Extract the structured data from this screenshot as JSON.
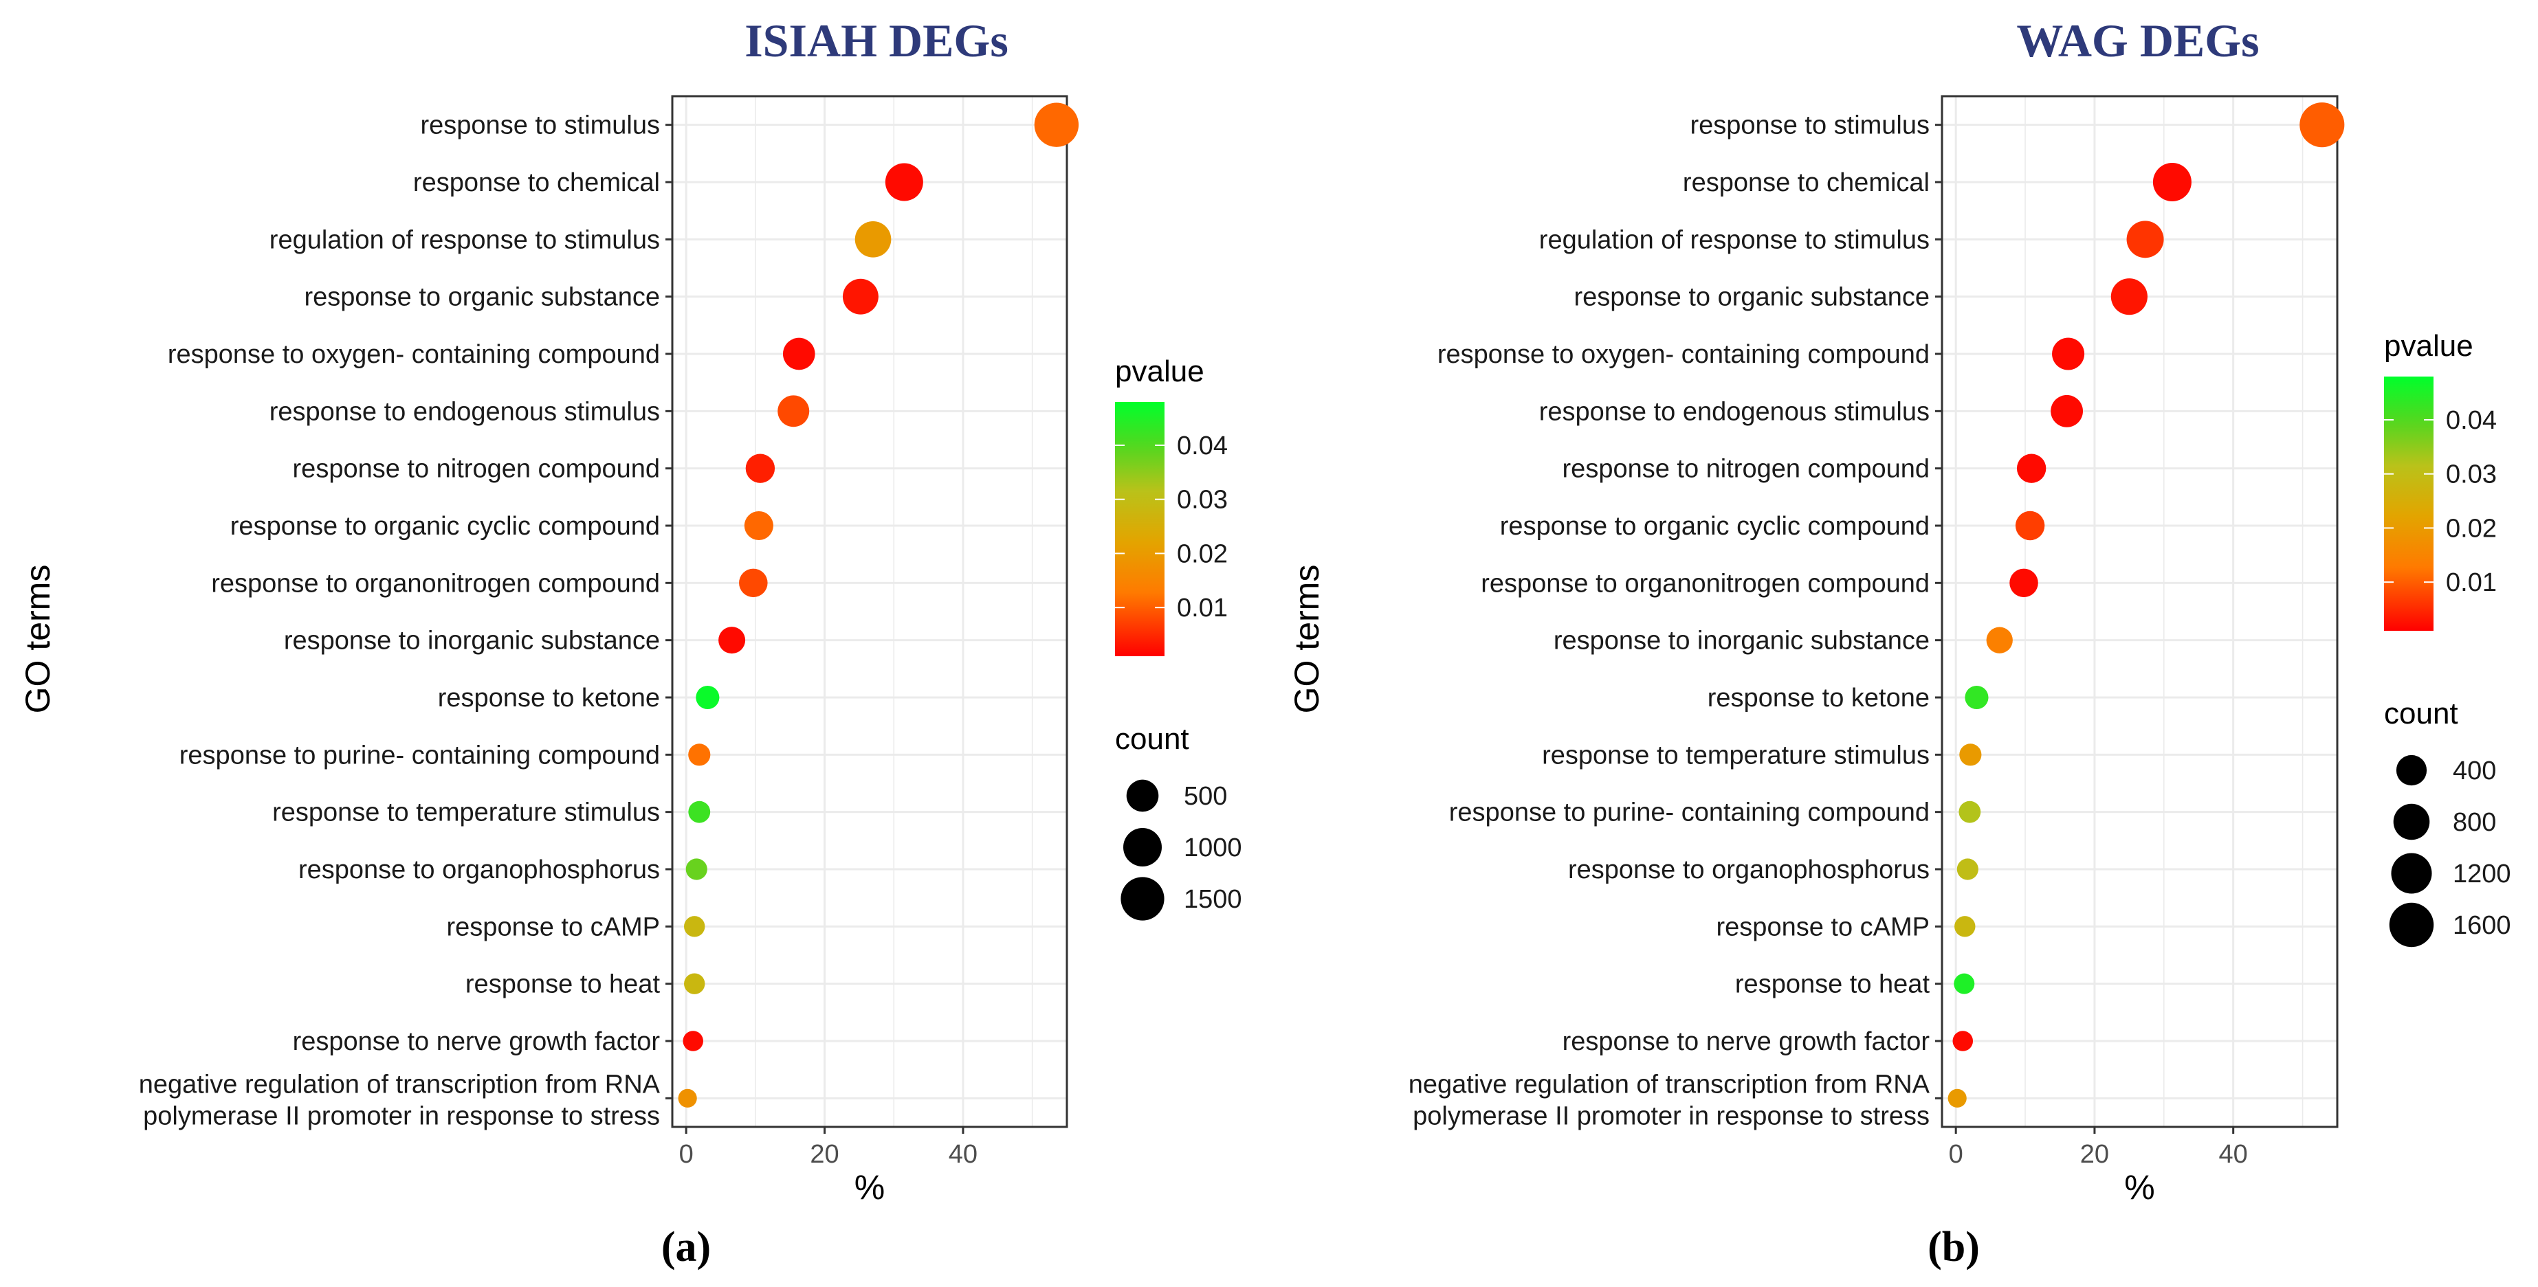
{
  "chart_data": [
    {
      "type": "scatter",
      "title": "ISIAH DEGs",
      "panel_label": "(a)",
      "xlabel": "%",
      "ylabel": "GO terms",
      "xlim": [
        -2,
        55
      ],
      "xticks": [
        0,
        20,
        40
      ],
      "categories": [
        "response to stimulus",
        "response to chemical",
        "regulation of response to stimulus",
        "response to organic substance",
        "response to oxygen- containing compound",
        "response to endogenous stimulus",
        "response to nitrogen compound",
        "response to organic cyclic compound",
        "response to organonitrogen compound",
        "response to inorganic substance",
        "response to ketone",
        "response to purine- containing compound",
        "response to temperature stimulus",
        "response to organophosphorus",
        "response to cAMP",
        "response to heat",
        "response to nerve growth factor",
        "negative regulation of transcription from RNA\npolymerase II promoter in response to stress"
      ],
      "x": [
        53.5,
        31.5,
        27.0,
        25.2,
        16.3,
        15.5,
        10.7,
        10.5,
        9.7,
        6.6,
        3.1,
        1.9,
        1.9,
        1.5,
        1.2,
        1.2,
        1.0,
        0.2
      ],
      "pvalue": [
        0.011,
        0.002,
        0.02,
        0.003,
        0.002,
        0.008,
        0.004,
        0.011,
        0.008,
        0.002,
        0.047,
        0.012,
        0.042,
        0.038,
        0.028,
        0.028,
        0.002,
        0.018
      ],
      "count": [
        1590,
        940,
        800,
        760,
        500,
        470,
        330,
        320,
        300,
        220,
        100,
        65,
        60,
        50,
        40,
        40,
        30,
        10
      ],
      "legend": {
        "color_title": "pvalue",
        "color_ticks": [
          0.01,
          0.02,
          0.03,
          0.04
        ],
        "color_range": [
          0.001,
          0.048
        ],
        "size_title": "count",
        "size_ticks": [
          500,
          1000,
          1500
        ]
      }
    },
    {
      "type": "scatter",
      "title": "WAG DEGs",
      "panel_label": "(b)",
      "xlabel": "%",
      "ylabel": "GO terms",
      "xlim": [
        -2,
        55
      ],
      "xticks": [
        0,
        20,
        40
      ],
      "categories": [
        "response to stimulus",
        "response to chemical",
        "regulation of response to stimulus",
        "response to organic substance",
        "response to oxygen- containing compound",
        "response to endogenous stimulus",
        "response to nitrogen compound",
        "response to organic cyclic compound",
        "response to organonitrogen compound",
        "response to inorganic substance",
        "response to ketone",
        "response to temperature stimulus",
        "response to purine- containing compound",
        "response to organophosphorus",
        "response to cAMP",
        "response to heat",
        "response to nerve growth factor",
        "negative regulation of transcription from RNA\npolymerase II promoter in response to stress"
      ],
      "x": [
        52.8,
        31.2,
        27.3,
        25.0,
        16.2,
        16.0,
        10.9,
        10.7,
        9.8,
        6.3,
        3.0,
        2.1,
        2.0,
        1.7,
        1.3,
        1.2,
        1.0,
        0.2
      ],
      "pvalue": [
        0.01,
        0.002,
        0.006,
        0.003,
        0.002,
        0.002,
        0.002,
        0.007,
        0.002,
        0.014,
        0.043,
        0.02,
        0.032,
        0.03,
        0.028,
        0.045,
        0.002,
        0.02
      ],
      "count": [
        1650,
        1000,
        880,
        830,
        520,
        510,
        330,
        330,
        300,
        200,
        100,
        65,
        60,
        50,
        40,
        35,
        30,
        10
      ],
      "legend": {
        "color_title": "pvalue",
        "color_ticks": [
          0.01,
          0.02,
          0.03,
          0.04
        ],
        "color_range": [
          0.001,
          0.048
        ],
        "size_title": "count",
        "size_ticks": [
          400,
          800,
          1200,
          1600
        ]
      }
    }
  ],
  "colors": {
    "low_pvalue": "#ff0000",
    "mid_pvalue": "#c8b400",
    "high_pvalue": "#00ff2b",
    "title": "#2e3a7a"
  }
}
